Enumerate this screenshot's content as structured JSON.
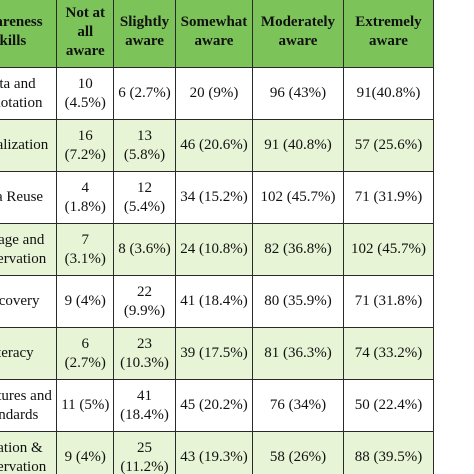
{
  "headers": [
    "Awareness Skills",
    "Not at all aware",
    "Slightly aware",
    "Somewhat aware",
    "Moderately aware",
    "Extremely aware"
  ],
  "rows": [
    {
      "skill": "Data and Annotation",
      "cells": [
        "10 (4.5%)",
        "6 (2.7%)",
        "20 (9%)",
        "96 (43%)",
        "91(40.8%)"
      ]
    },
    {
      "skill": "Visualization",
      "cells": [
        "16 (7.2%)",
        "13 (5.8%)",
        "46 (20.6%)",
        "91 (40.8%)",
        "57 (25.6%)"
      ]
    },
    {
      "skill": "Data Reuse",
      "cells": [
        "4 (1.8%)",
        "12 (5.4%)",
        "34 (15.2%)",
        "102 (45.7%)",
        "71 (31.9%)"
      ]
    },
    {
      "skill": "Storage and Preservation",
      "cells": [
        "7 (3.1%)",
        "8 (3.6%)",
        "24 (10.8%)",
        "82 (36.8%)",
        "102 (45.7%)"
      ]
    },
    {
      "skill": "Discovery",
      "cells": [
        "9 (4%)",
        "22 (9.9%)",
        "41 (18.4%)",
        "80 (35.9%)",
        "71 (31.8%)"
      ]
    },
    {
      "skill": "Literacy",
      "cells": [
        "6 (2.7%)",
        "23 (10.3%)",
        "39 (17.5%)",
        "81 (36.3%)",
        "74 (33.2%)"
      ]
    },
    {
      "skill": "Structures and Standards",
      "cells": [
        "11 (5%)",
        "41 (18.4%)",
        "45 (20.2%)",
        "76 (34%)",
        "50 (22.4%)"
      ]
    },
    {
      "skill": "Curation & Preservation",
      "cells": [
        "9 (4%)",
        "25 (11.2%)",
        "43 (19.3%)",
        "58 (26%)",
        "88 (39.5%)"
      ]
    }
  ]
}
